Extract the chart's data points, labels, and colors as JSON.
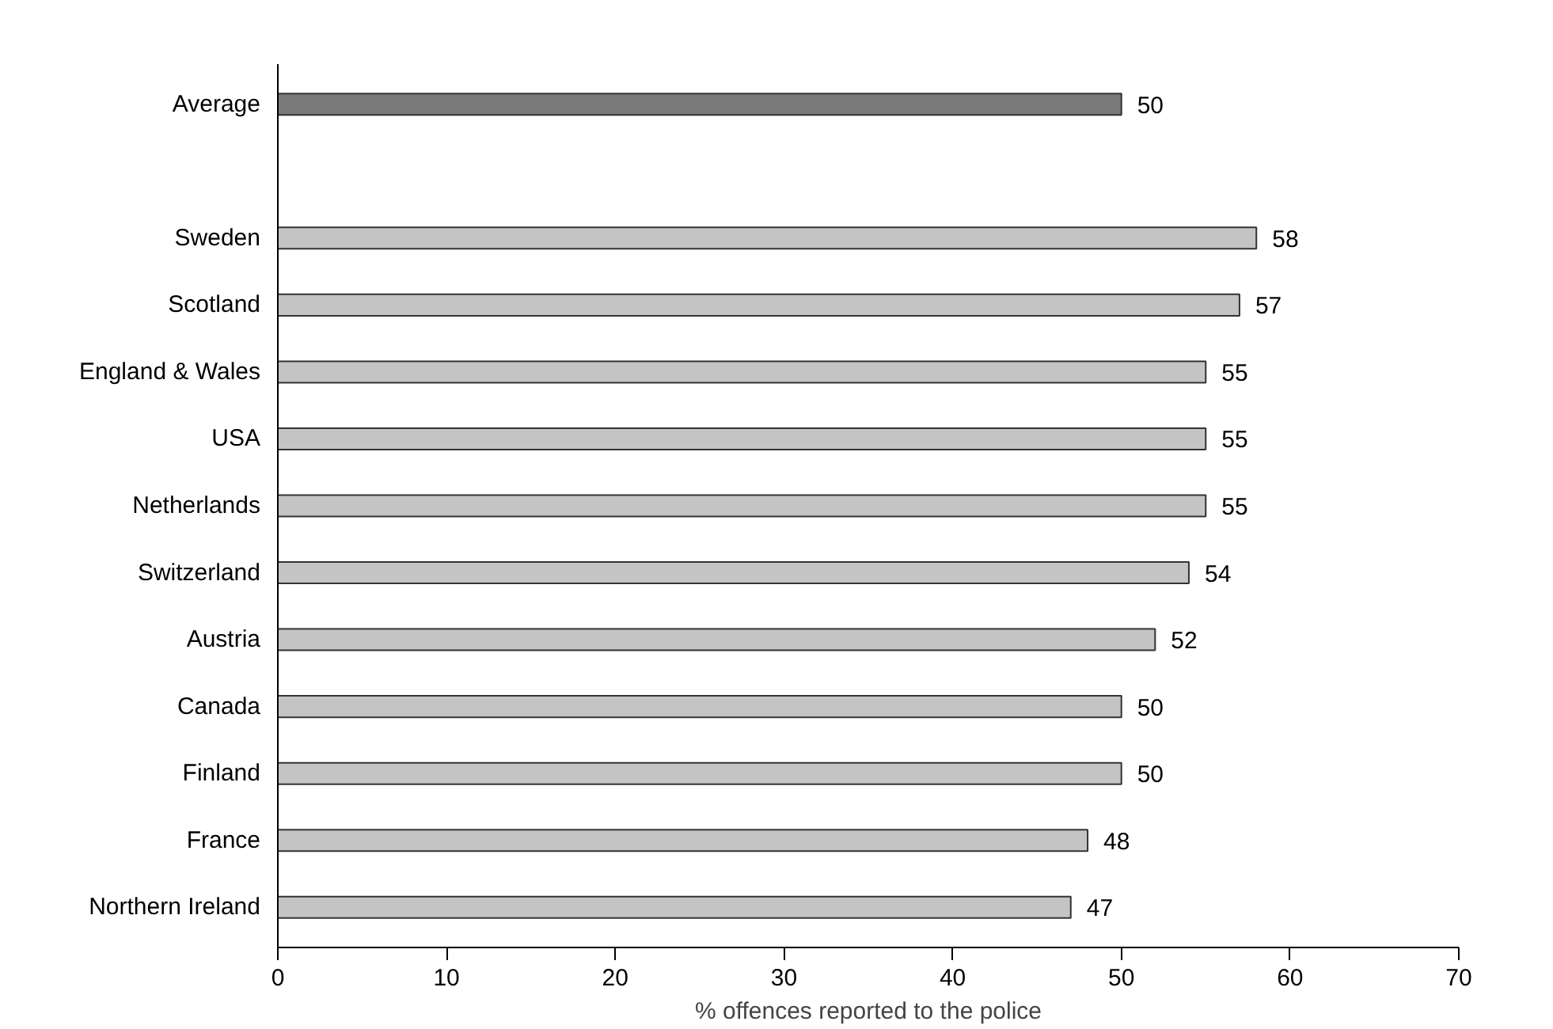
{
  "chart_data": {
    "type": "bar",
    "orientation": "horizontal",
    "xlabel": "% offences reported to the police",
    "categories": [
      "Average",
      null,
      "Sweden",
      "Scotland",
      "England & Wales",
      "USA",
      "Netherlands",
      "Switzerland",
      "Austria",
      "Canada",
      "Finland",
      "France",
      "Northern Ireland"
    ],
    "values": [
      50,
      null,
      58,
      57,
      55,
      55,
      55,
      54,
      52,
      50,
      50,
      48,
      47
    ],
    "colors": [
      "#7a7a7a",
      "#c4c4c4",
      "#c4c4c4",
      "#c4c4c4",
      "#c4c4c4",
      "#c4c4c4",
      "#c4c4c4",
      "#c4c4c4",
      "#c4c4c4",
      "#c4c4c4",
      "#c4c4c4",
      "#c4c4c4",
      "#c4c4c4"
    ],
    "xlim": [
      0,
      70
    ],
    "xticks": [
      0,
      10,
      20,
      30,
      40,
      50,
      60,
      70
    ],
    "data_labels": true,
    "grid": false
  }
}
